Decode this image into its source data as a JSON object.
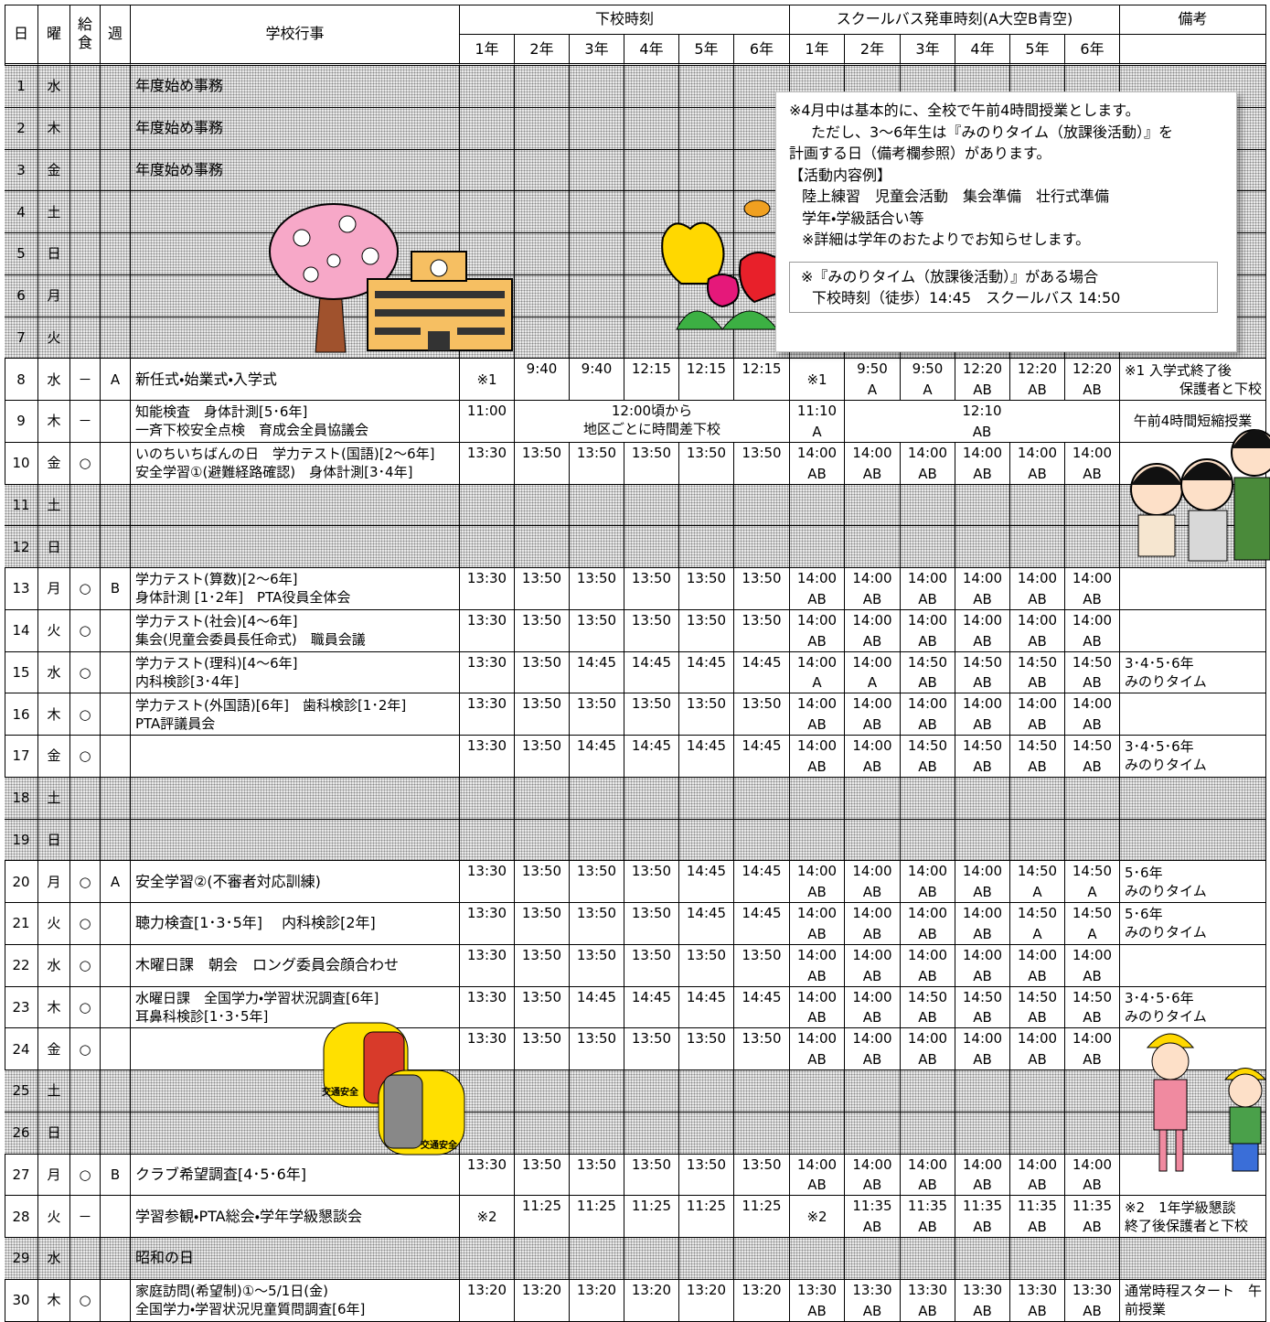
{
  "header": {
    "day": "日",
    "dow": "曜",
    "lunch": "給食",
    "week": "週",
    "event": "学校行事",
    "dismissal": "下校時刻",
    "bus": "スクールバス発車時刻(A大空B青空)",
    "note": "備考",
    "grades": [
      "1年",
      "2年",
      "3年",
      "4年",
      "5年",
      "6年"
    ]
  },
  "rows": [
    {
      "day": "1",
      "dow": "水",
      "event": [
        "年度始め事務"
      ],
      "shaded": true
    },
    {
      "day": "2",
      "dow": "木",
      "event": [
        "年度始め事務"
      ],
      "shaded": true
    },
    {
      "day": "3",
      "dow": "金",
      "event": [
        "年度始め事務"
      ],
      "shaded": true
    },
    {
      "day": "4",
      "dow": "土",
      "shaded": true
    },
    {
      "day": "5",
      "dow": "日",
      "shaded": true
    },
    {
      "day": "6",
      "dow": "月",
      "shaded": true
    },
    {
      "day": "7",
      "dow": "火",
      "shaded": true
    },
    {
      "day": "8",
      "dow": "水",
      "lunch": "－",
      "week": "A",
      "event": [
        "新任式・始業式・入学式"
      ],
      "dismissal": [
        "※1",
        "9:40",
        "9:40",
        "12:15",
        "12:15",
        "12:15"
      ],
      "bus": [
        "※1",
        {
          "time": "9:50",
          "route": "A"
        },
        {
          "time": "9:50",
          "route": "A"
        },
        {
          "time": "12:20",
          "route": "AB"
        },
        {
          "time": "12:20",
          "route": "AB"
        },
        {
          "time": "12:20",
          "route": "AB"
        }
      ],
      "note": [
        "※1 入学式終了後",
        "保護者と下校"
      ]
    },
    {
      "day": "9",
      "dow": "木",
      "lunch": "－",
      "event": [
        "知能検査　身体計測[5･6年]",
        "一斉下校安全点検　育成会全員協議会"
      ],
      "dismissal": [
        "11:00",
        [
          "12:00頃から",
          "地区ごとに時間差下校"
        ]
      ],
      "bus": [
        {
          "time": "11:10",
          "route": "A"
        },
        {
          "time": "12:10",
          "route": "AB"
        }
      ],
      "note": [
        "午前4時間短縮授業"
      ]
    },
    {
      "day": "10",
      "dow": "金",
      "lunch": "○",
      "event": [
        "いのちいちばんの日　学力テスト(国語)[2～6年]",
        "安全学習①(避難経路確認)　身体計測[3･4年]"
      ],
      "dismissal": [
        "13:30",
        "13:50",
        "13:50",
        "13:50",
        "13:50",
        "13:50"
      ],
      "bus": [
        {
          "time": "14:00",
          "route": "AB"
        },
        {
          "time": "14:00",
          "route": "AB"
        },
        {
          "time": "14:00",
          "route": "AB"
        },
        {
          "time": "14:00",
          "route": "AB"
        },
        {
          "time": "14:00",
          "route": "AB"
        },
        {
          "time": "14:00",
          "route": "AB"
        }
      ]
    },
    {
      "day": "11",
      "dow": "土",
      "shaded": true
    },
    {
      "day": "12",
      "dow": "日",
      "shaded": true
    },
    {
      "day": "13",
      "dow": "月",
      "lunch": "○",
      "week": "B",
      "event": [
        "学力テスト(算数)[2～6年]",
        "身体計測 [1･2年]　PTA役員全体会"
      ],
      "dismissal": [
        "13:30",
        "13:50",
        "13:50",
        "13:50",
        "13:50",
        "13:50"
      ],
      "bus": [
        {
          "time": "14:00",
          "route": "AB"
        },
        {
          "time": "14:00",
          "route": "AB"
        },
        {
          "time": "14:00",
          "route": "AB"
        },
        {
          "time": "14:00",
          "route": "AB"
        },
        {
          "time": "14:00",
          "route": "AB"
        },
        {
          "time": "14:00",
          "route": "AB"
        }
      ]
    },
    {
      "day": "14",
      "dow": "火",
      "lunch": "○",
      "event": [
        "学力テスト(社会)[4～6年]",
        "集会(児童会委員長任命式)　職員会議"
      ],
      "dismissal": [
        "13:30",
        "13:50",
        "13:50",
        "13:50",
        "13:50",
        "13:50"
      ],
      "bus": [
        {
          "time": "14:00",
          "route": "AB"
        },
        {
          "time": "14:00",
          "route": "AB"
        },
        {
          "time": "14:00",
          "route": "AB"
        },
        {
          "time": "14:00",
          "route": "AB"
        },
        {
          "time": "14:00",
          "route": "AB"
        },
        {
          "time": "14:00",
          "route": "AB"
        }
      ]
    },
    {
      "day": "15",
      "dow": "水",
      "lunch": "○",
      "event": [
        "学力テスト(理科)[4～6年]",
        "内科検診[3･4年]"
      ],
      "dismissal": [
        "13:30",
        "13:50",
        "14:45",
        "14:45",
        "14:45",
        "14:45"
      ],
      "bus": [
        {
          "time": "14:00",
          "route": "A"
        },
        {
          "time": "14:00",
          "route": "A"
        },
        {
          "time": "14:50",
          "route": "AB"
        },
        {
          "time": "14:50",
          "route": "AB"
        },
        {
          "time": "14:50",
          "route": "AB"
        },
        {
          "time": "14:50",
          "route": "AB"
        }
      ],
      "note": [
        "3･4･5･6年",
        "みのりタイム"
      ]
    },
    {
      "day": "16",
      "dow": "木",
      "lunch": "○",
      "event": [
        "学力テスト(外国語)[6年]　歯科検診[1･2年]",
        "PTA評議員会"
      ],
      "dismissal": [
        "13:30",
        "13:50",
        "13:50",
        "13:50",
        "13:50",
        "13:50"
      ],
      "bus": [
        {
          "time": "14:00",
          "route": "AB"
        },
        {
          "time": "14:00",
          "route": "AB"
        },
        {
          "time": "14:00",
          "route": "AB"
        },
        {
          "time": "14:00",
          "route": "AB"
        },
        {
          "time": "14:00",
          "route": "AB"
        },
        {
          "time": "14:00",
          "route": "AB"
        }
      ]
    },
    {
      "day": "17",
      "dow": "金",
      "lunch": "○",
      "dismissal": [
        "13:30",
        "13:50",
        "14:45",
        "14:45",
        "14:45",
        "14:45"
      ],
      "bus": [
        {
          "time": "14:00",
          "route": "AB"
        },
        {
          "time": "14:00",
          "route": "AB"
        },
        {
          "time": "14:50",
          "route": "AB"
        },
        {
          "time": "14:50",
          "route": "AB"
        },
        {
          "time": "14:50",
          "route": "AB"
        },
        {
          "time": "14:50",
          "route": "AB"
        }
      ],
      "note": [
        "3･4･5･6年",
        "みのりタイム"
      ]
    },
    {
      "day": "18",
      "dow": "土",
      "shaded": true
    },
    {
      "day": "19",
      "dow": "日",
      "shaded": true
    },
    {
      "day": "20",
      "dow": "月",
      "lunch": "○",
      "week": "A",
      "event": [
        "安全学習②(不審者対応訓練)"
      ],
      "dismissal": [
        "13:30",
        "13:50",
        "13:50",
        "13:50",
        "14:45",
        "14:45"
      ],
      "bus": [
        {
          "time": "14:00",
          "route": "AB"
        },
        {
          "time": "14:00",
          "route": "AB"
        },
        {
          "time": "14:00",
          "route": "AB"
        },
        {
          "time": "14:00",
          "route": "AB"
        },
        {
          "time": "14:50",
          "route": "A"
        },
        {
          "time": "14:50",
          "route": "A"
        }
      ],
      "note": [
        "5･6年",
        "みのりタイム"
      ]
    },
    {
      "day": "21",
      "dow": "火",
      "lunch": "○",
      "event": [
        "聴力検査[1･3･5年]　 内科検診[2年]"
      ],
      "dismissal": [
        "13:30",
        "13:50",
        "13:50",
        "13:50",
        "14:45",
        "14:45"
      ],
      "bus": [
        {
          "time": "14:00",
          "route": "AB"
        },
        {
          "time": "14:00",
          "route": "AB"
        },
        {
          "time": "14:00",
          "route": "AB"
        },
        {
          "time": "14:00",
          "route": "AB"
        },
        {
          "time": "14:50",
          "route": "A"
        },
        {
          "time": "14:50",
          "route": "A"
        }
      ],
      "note": [
        "5･6年",
        "みのりタイム"
      ]
    },
    {
      "day": "22",
      "dow": "水",
      "lunch": "○",
      "event": [
        "木曜日課　朝会　ロング委員会顔合わせ"
      ],
      "dismissal": [
        "13:30",
        "13:50",
        "13:50",
        "13:50",
        "13:50",
        "13:50"
      ],
      "bus": [
        {
          "time": "14:00",
          "route": "AB"
        },
        {
          "time": "14:00",
          "route": "AB"
        },
        {
          "time": "14:00",
          "route": "AB"
        },
        {
          "time": "14:00",
          "route": "AB"
        },
        {
          "time": "14:00",
          "route": "AB"
        },
        {
          "time": "14:00",
          "route": "AB"
        }
      ]
    },
    {
      "day": "23",
      "dow": "木",
      "lunch": "○",
      "event": [
        "水曜日課　全国学力・学習状況調査[6年]",
        "耳鼻科検診[1･3･5年]"
      ],
      "dismissal": [
        "13:30",
        "13:50",
        "14:45",
        "14:45",
        "14:45",
        "14:45"
      ],
      "bus": [
        {
          "time": "14:00",
          "route": "AB"
        },
        {
          "time": "14:00",
          "route": "AB"
        },
        {
          "time": "14:50",
          "route": "AB"
        },
        {
          "time": "14:50",
          "route": "AB"
        },
        {
          "time": "14:50",
          "route": "AB"
        },
        {
          "time": "14:50",
          "route": "AB"
        }
      ],
      "note": [
        "3･4･5･6年",
        "みのりタイム"
      ]
    },
    {
      "day": "24",
      "dow": "金",
      "lunch": "○",
      "dismissal": [
        "13:30",
        "13:50",
        "13:50",
        "13:50",
        "13:50",
        "13:50"
      ],
      "bus": [
        {
          "time": "14:00",
          "route": "AB"
        },
        {
          "time": "14:00",
          "route": "AB"
        },
        {
          "time": "14:00",
          "route": "AB"
        },
        {
          "time": "14:00",
          "route": "AB"
        },
        {
          "time": "14:00",
          "route": "AB"
        },
        {
          "time": "14:00",
          "route": "AB"
        }
      ]
    },
    {
      "day": "25",
      "dow": "土",
      "shaded": true
    },
    {
      "day": "26",
      "dow": "日",
      "shaded": true
    },
    {
      "day": "27",
      "dow": "月",
      "lunch": "○",
      "week": "B",
      "event": [
        "クラブ希望調査[4･5･6年]"
      ],
      "dismissal": [
        "13:30",
        "13:50",
        "13:50",
        "13:50",
        "13:50",
        "13:50"
      ],
      "bus": [
        {
          "time": "14:00",
          "route": "AB"
        },
        {
          "time": "14:00",
          "route": "AB"
        },
        {
          "time": "14:00",
          "route": "AB"
        },
        {
          "time": "14:00",
          "route": "AB"
        },
        {
          "time": "14:00",
          "route": "AB"
        },
        {
          "time": "14:00",
          "route": "AB"
        }
      ]
    },
    {
      "day": "28",
      "dow": "火",
      "lunch": "－",
      "event": [
        "学習参観・PTA総会・学年学級懇談会"
      ],
      "dismissal": [
        "※2",
        "11:25",
        "11:25",
        "11:25",
        "11:25",
        "11:25"
      ],
      "bus": [
        "※2",
        {
          "time": "11:35",
          "route": "AB"
        },
        {
          "time": "11:35",
          "route": "AB"
        },
        {
          "time": "11:35",
          "route": "AB"
        },
        {
          "time": "11:35",
          "route": "AB"
        },
        {
          "time": "11:35",
          "route": "AB"
        }
      ],
      "note": [
        "※2　1年学級懇談",
        "終了後保護者と下校"
      ]
    },
    {
      "day": "29",
      "dow": "水",
      "event": [
        "昭和の日"
      ],
      "shaded": true
    },
    {
      "day": "30",
      "dow": "木",
      "lunch": "○",
      "event": [
        "家庭訪問(希望制)①～5/1日(金)",
        "全国学力・学習状況児童質問調査[6年]"
      ],
      "dismissal": [
        "13:20",
        "13:20",
        "13:20",
        "13:20",
        "13:20",
        "13:20"
      ],
      "bus": [
        {
          "time": "13:30",
          "route": "AB"
        },
        {
          "time": "13:30",
          "route": "AB"
        },
        {
          "time": "13:30",
          "route": "AB"
        },
        {
          "time": "13:30",
          "route": "AB"
        },
        {
          "time": "13:30",
          "route": "AB"
        },
        {
          "time": "13:30",
          "route": "AB"
        }
      ],
      "note": [
        "通常時程スタート　午",
        "前授業"
      ]
    }
  ],
  "notice": {
    "lines": [
      "※4月中は基本的に、全校で午前4時間授業とします。",
      "ただし、3～6年生は『みのりタイム（放課後活動）』を",
      "計画する日（備考欄参照）があります。",
      "【活動内容例】",
      "陸上練習　児童会活動　集会準備　壮行式準備",
      "学年・学級話合い等",
      "※詳細は学年のおたよりでお知らせします。"
    ],
    "inner": [
      "※『みのりタイム（放課後活動）』がある場合",
      "下校時刻（徒歩）14:45　スクールバス 14:50"
    ]
  },
  "illustrations": {
    "backpack_labels": [
      "交通安全",
      "交通安全"
    ]
  }
}
